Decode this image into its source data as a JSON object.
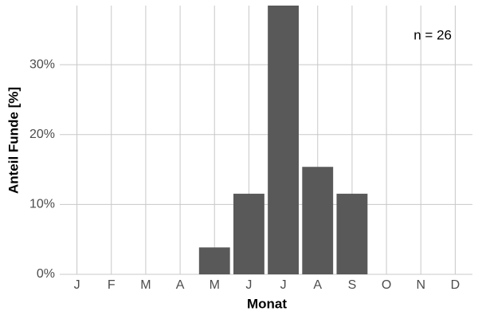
{
  "chart_data": {
    "type": "bar",
    "x_label": "Monat",
    "y_label": "Anteil Funde [%]",
    "annotation": "n = 26",
    "categories": [
      "J",
      "F",
      "M",
      "A",
      "M",
      "J",
      "J",
      "A",
      "S",
      "O",
      "N",
      "D"
    ],
    "values": [
      0,
      0,
      0,
      0,
      3.85,
      11.54,
      38.46,
      15.38,
      11.54,
      0,
      0,
      0
    ],
    "color": "#595959",
    "ylim": [
      0,
      38.46
    ],
    "yticks": [
      {
        "value": 0,
        "label": "0%"
      },
      {
        "value": 10,
        "label": "10%"
      },
      {
        "value": 20,
        "label": "20%"
      },
      {
        "value": 30,
        "label": "30%"
      }
    ],
    "grid": true
  }
}
